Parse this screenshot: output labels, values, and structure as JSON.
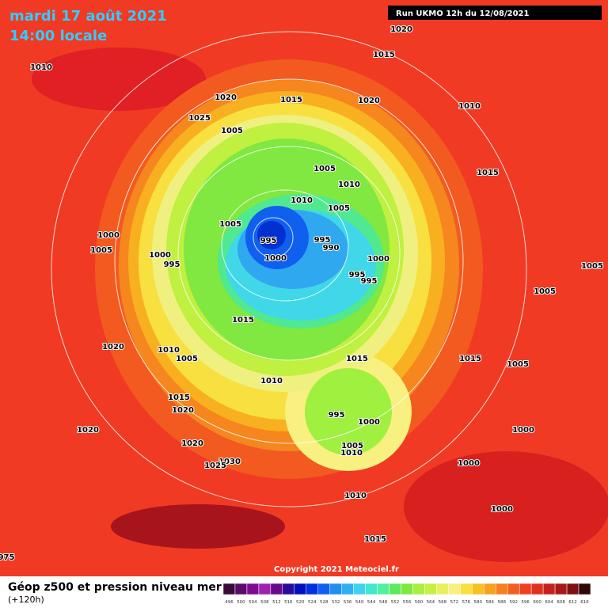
{
  "header": {
    "date": "mardi 17 août 2021",
    "time": "14:00 locale",
    "run": "Run UKMO 12h du 12/08/2021"
  },
  "copyright": "Copyright 2021 Meteociel.fr",
  "legend": {
    "title": "Géop z500 et pression niveau mer",
    "lead": "(+120h)",
    "values": [
      496,
      500,
      504,
      508,
      512,
      516,
      520,
      524,
      528,
      532,
      536,
      540,
      544,
      548,
      552,
      556,
      560,
      564,
      568,
      572,
      576,
      580,
      584,
      588,
      592,
      596,
      600,
      604,
      608,
      612,
      616
    ],
    "colors": [
      "#3a0a3a",
      "#5a0a6a",
      "#800a90",
      "#a020b0",
      "#6a0a8a",
      "#2a0a9a",
      "#0010c0",
      "#0030e0",
      "#1060f0",
      "#2090f0",
      "#30b0f0",
      "#40d0f0",
      "#40e8d0",
      "#50f0a0",
      "#60e860",
      "#80e840",
      "#a8f040",
      "#c8f040",
      "#e8f060",
      "#f8f080",
      "#f8e040",
      "#f8c020",
      "#f8a020",
      "#f48020",
      "#f06020",
      "#f04020",
      "#e03020",
      "#c82020",
      "#a81818",
      "#801010",
      "#300808"
    ]
  },
  "isobar_labels": [
    1020,
    1015,
    1010,
    1020,
    1015,
    1020,
    1010,
    1025,
    1005,
    1005,
    1015,
    1010,
    1010,
    1005,
    1005,
    1000,
    995,
    995,
    990,
    1005,
    1000,
    1000,
    1000,
    995,
    995,
    995,
    1005,
    1005,
    1015,
    1020,
    1010,
    1005,
    1015,
    1015,
    1005,
    1010,
    1015,
    1020,
    995,
    1000,
    1020,
    1000,
    1020,
    1005,
    1010,
    1030,
    1000,
    1025,
    1010,
    1000,
    1015,
    975
  ]
}
